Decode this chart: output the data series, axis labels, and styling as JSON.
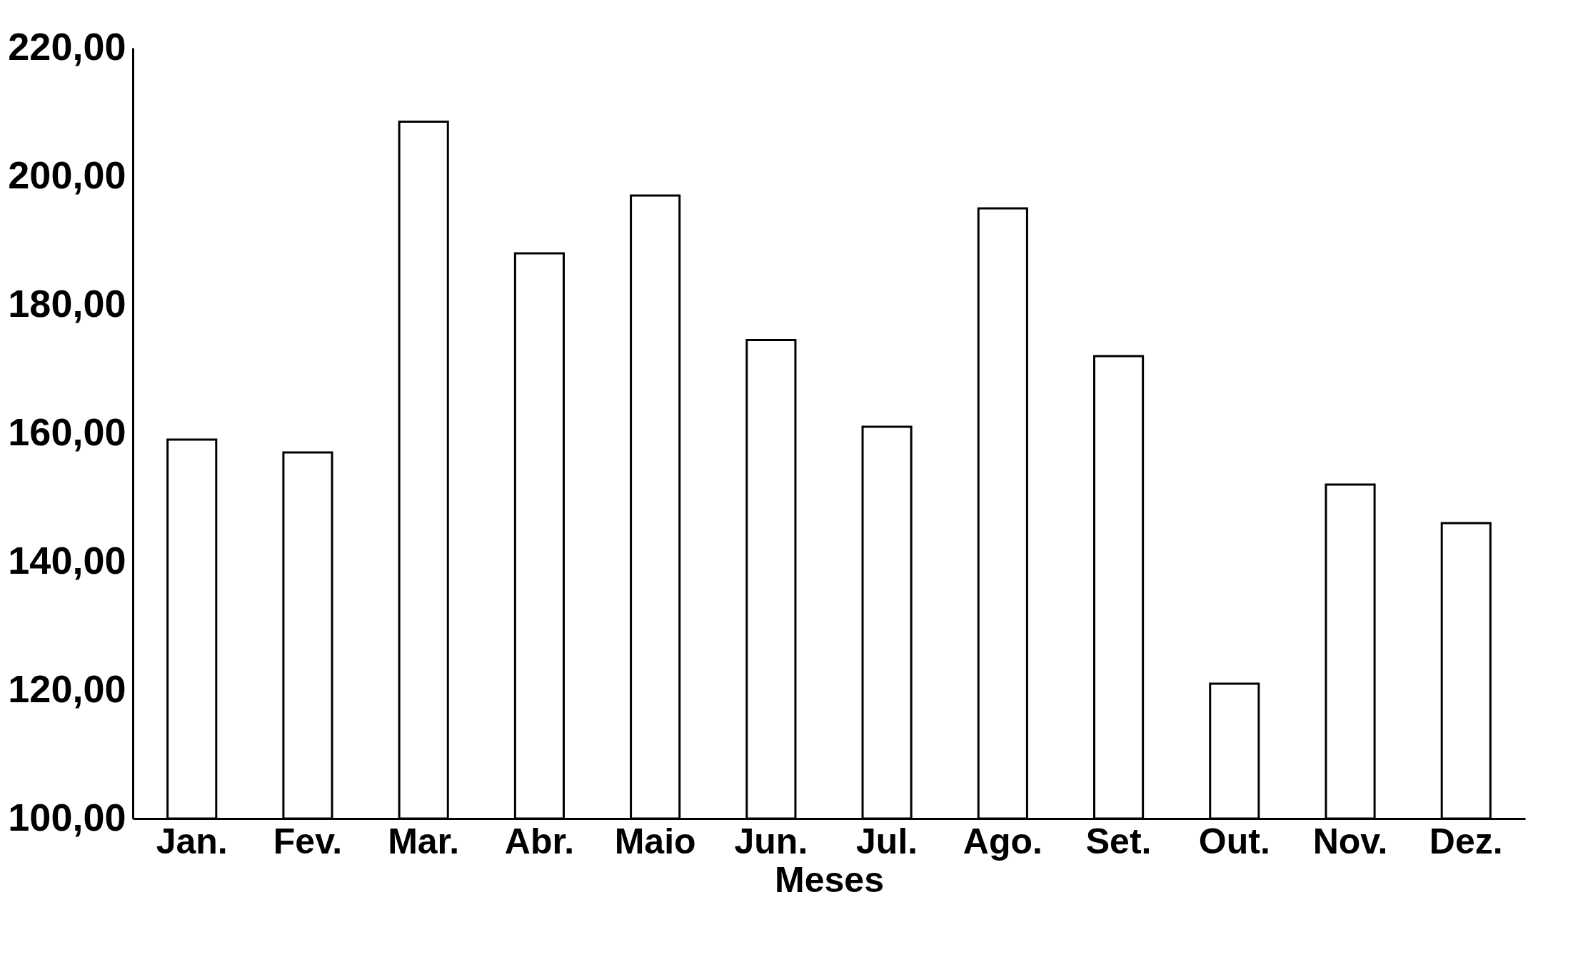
{
  "chart_data": {
    "type": "bar",
    "xlabel": "Meses",
    "categories": [
      "Jan.",
      "Fev.",
      "Mar.",
      "Abr.",
      "Maio",
      "Jun.",
      "Jul.",
      "Ago.",
      "Set.",
      "Out.",
      "Nov.",
      "Dez."
    ],
    "values": [
      159,
      157,
      208.5,
      188,
      197,
      174.5,
      161,
      195,
      172,
      121,
      152,
      146
    ],
    "color": "#ffffff",
    "ylim": [
      100,
      220
    ],
    "yticks": [
      {
        "value": 100,
        "label": "100,00"
      },
      {
        "value": 120,
        "label": "120,00"
      },
      {
        "value": 140,
        "label": "140,00"
      },
      {
        "value": 160,
        "label": "160,00"
      },
      {
        "value": 180,
        "label": "180,00"
      },
      {
        "value": 200,
        "label": "200,00"
      },
      {
        "value": 220,
        "label": "220,00"
      }
    ],
    "grid": false
  }
}
